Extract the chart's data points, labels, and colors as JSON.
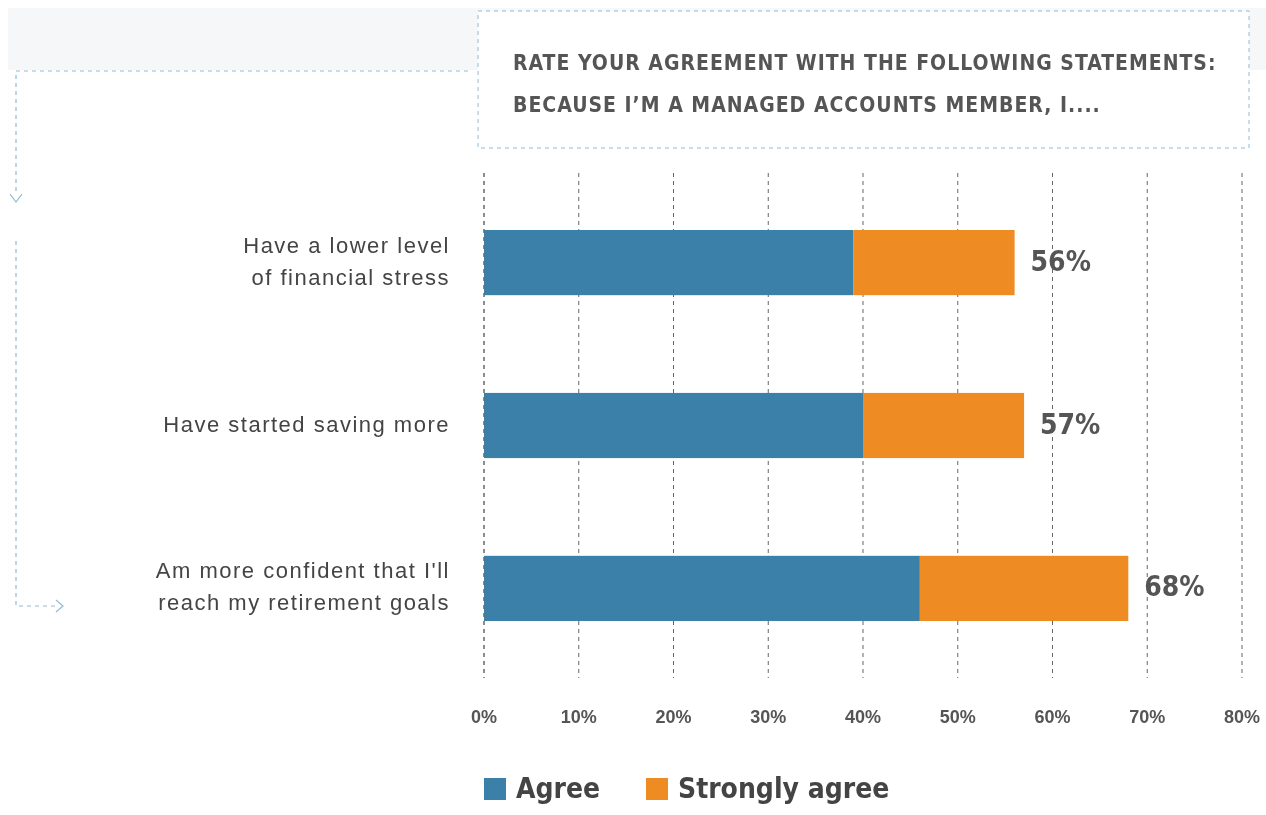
{
  "chart_data": {
    "type": "bar",
    "orientation": "horizontal",
    "stacked": true,
    "title": "RATE YOUR AGREEMENT WITH THE FOLLOWING STATEMENTS:\nBECAUSE I’M A MANAGED ACCOUNTS MEMBER, I....",
    "categories": [
      "Have a lower level\nof financial stress",
      "Have started saving more",
      "Am more confident that I'll\nreach my retirement goals"
    ],
    "series": [
      {
        "name": "Agree",
        "color": "#3a80a8",
        "values": [
          39,
          40,
          46
        ]
      },
      {
        "name": "Strongly agree",
        "color": "#ee8b22",
        "values": [
          17,
          17,
          22
        ]
      }
    ],
    "totals": [
      "56%",
      "57%",
      "68%"
    ],
    "xlim": [
      0,
      80
    ],
    "xticks": [
      {
        "value": 0,
        "label": "0%"
      },
      {
        "value": 10,
        "label": "10%"
      },
      {
        "value": 20,
        "label": "20%"
      },
      {
        "value": 30,
        "label": "30%"
      },
      {
        "value": 40,
        "label": "40%"
      },
      {
        "value": 50,
        "label": "50%"
      },
      {
        "value": 60,
        "label": "60%"
      },
      {
        "value": 70,
        "label": "70%"
      },
      {
        "value": 80,
        "label": "80%"
      }
    ],
    "grid": "x",
    "legend": "bottom"
  }
}
